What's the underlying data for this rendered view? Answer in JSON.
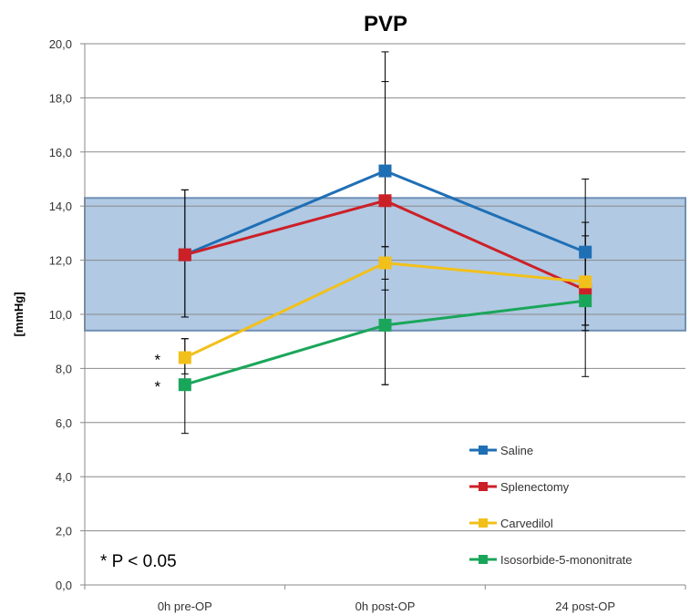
{
  "chart_data": {
    "type": "line",
    "title": "PVP",
    "xlabel": "",
    "ylabel": "[mmHg]",
    "categories": [
      "0h pre-OP",
      "0h post-OP",
      "24 post-OP"
    ],
    "ylim": [
      0,
      20
    ],
    "yticks": [
      "0,0",
      "2,0",
      "4,0",
      "6,0",
      "8,0",
      "10,0",
      "12,0",
      "14,0",
      "16,0",
      "18,0",
      "20,0"
    ],
    "grid": true,
    "reference_band": {
      "from": 9.4,
      "to": 14.3,
      "color": "#9dbcdc"
    },
    "series": [
      {
        "name": "Saline",
        "color": "#1f6fb5",
        "values": [
          12.2,
          15.3,
          12.3
        ],
        "err_low": [
          9.9,
          11.3,
          9.6
        ],
        "err_high": [
          14.6,
          19.7,
          15.0
        ]
      },
      {
        "name": "Splenectomy",
        "color": "#cc2027",
        "values": [
          12.2,
          14.2,
          10.9
        ],
        "err_low": [
          9.9,
          10.9,
          9.6
        ],
        "err_high": [
          14.6,
          18.6,
          13.4
        ]
      },
      {
        "name": "Carvedilol",
        "color": "#f2c01a",
        "values": [
          8.4,
          11.9,
          11.2
        ],
        "err_low": [
          7.8,
          7.4,
          9.4
        ],
        "err_high": [
          9.1,
          12.5,
          12.9
        ]
      },
      {
        "name": "Isosorbide-5-mononitrate",
        "color": "#1aa65a",
        "values": [
          7.4,
          9.6,
          10.5
        ],
        "err_low": [
          5.6,
          7.4,
          7.7
        ],
        "err_high": [
          9.1,
          12.5,
          13.4
        ]
      }
    ],
    "annotations": [
      {
        "text": "*",
        "category": "0h pre-OP",
        "y": 8.4
      },
      {
        "text": "*",
        "category": "0h pre-OP",
        "y": 7.4
      }
    ],
    "note": "* P < 0.05",
    "legend_placement": "bottom-right"
  }
}
